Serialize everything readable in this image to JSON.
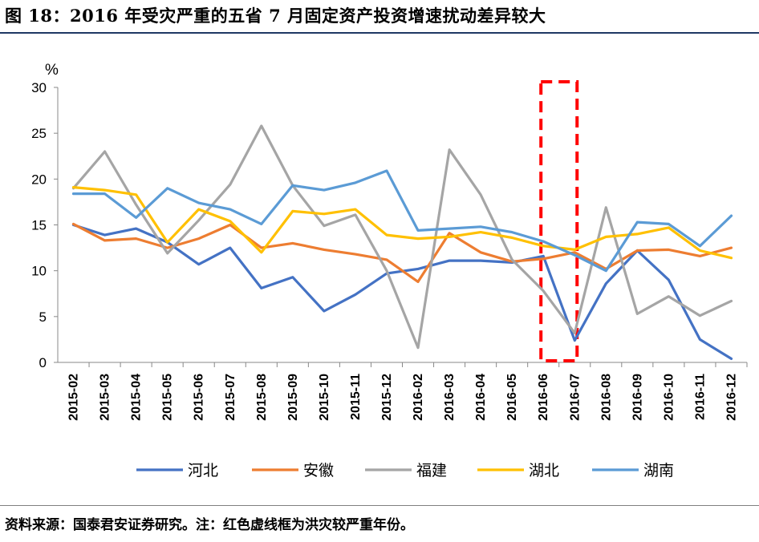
{
  "title": "图 18：2016 年受灾严重的五省 7 月固定资产投资增速扰动差异较大",
  "source": "资料来源：国泰君安证券研究。注：红色虚线框为洪灾较严重年份。",
  "chart_data": {
    "type": "line",
    "ylabel": "%",
    "ylim": [
      0,
      30
    ],
    "yticks": [
      0,
      5,
      10,
      15,
      20,
      25,
      30
    ],
    "categories": [
      "2015-02",
      "2015-03",
      "2015-04",
      "2015-05",
      "2015-06",
      "2015-07",
      "2015-08",
      "2015-09",
      "2015-10",
      "2015-11",
      "2015-12",
      "2016-02",
      "2016-03",
      "2016-04",
      "2016-05",
      "2016-06",
      "2016-07",
      "2016-08",
      "2016-09",
      "2016-10",
      "2016-11",
      "2016-12"
    ],
    "series": [
      {
        "name": "河北",
        "color": "#4472c4",
        "values": [
          15.0,
          13.9,
          14.6,
          13.1,
          10.7,
          12.5,
          8.1,
          9.3,
          5.6,
          7.4,
          9.7,
          10.2,
          11.1,
          11.1,
          10.9,
          11.6,
          2.4,
          8.6,
          12.2,
          9.0,
          2.5,
          0.4
        ]
      },
      {
        "name": "安徽",
        "color": "#ed7d31",
        "values": [
          15.1,
          13.3,
          13.5,
          12.5,
          13.5,
          15.0,
          12.5,
          13.0,
          12.3,
          11.8,
          11.2,
          8.8,
          14.1,
          12.0,
          11.0,
          11.3,
          12.0,
          10.2,
          12.2,
          12.3,
          11.6,
          12.5
        ]
      },
      {
        "name": "福建",
        "color": "#a5a5a5",
        "values": [
          19.0,
          23.0,
          17.2,
          11.9,
          15.5,
          19.4,
          25.8,
          19.3,
          14.9,
          16.1,
          10.0,
          1.6,
          23.2,
          18.3,
          11.2,
          7.8,
          3.2,
          16.9,
          5.3,
          7.2,
          5.1,
          6.7
        ]
      },
      {
        "name": "湖北",
        "color": "#ffc000",
        "values": [
          19.1,
          18.8,
          18.3,
          13.1,
          16.7,
          15.4,
          12.0,
          16.5,
          16.2,
          16.7,
          13.9,
          13.5,
          13.7,
          14.2,
          13.6,
          12.7,
          12.3,
          13.7,
          14.0,
          14.7,
          12.2,
          11.4
        ]
      },
      {
        "name": "湖南",
        "color": "#5b9bd5",
        "values": [
          18.4,
          18.4,
          15.8,
          19.0,
          17.4,
          16.7,
          15.1,
          19.3,
          18.8,
          19.6,
          20.9,
          14.4,
          14.6,
          14.8,
          14.2,
          13.2,
          11.7,
          10.0,
          15.3,
          15.1,
          12.7,
          16.0
        ]
      }
    ],
    "highlight": {
      "from": "2016-06",
      "to": "2016-07",
      "color": "#ff0000",
      "style": "dashed"
    },
    "legend": "bottom",
    "grid": false
  }
}
